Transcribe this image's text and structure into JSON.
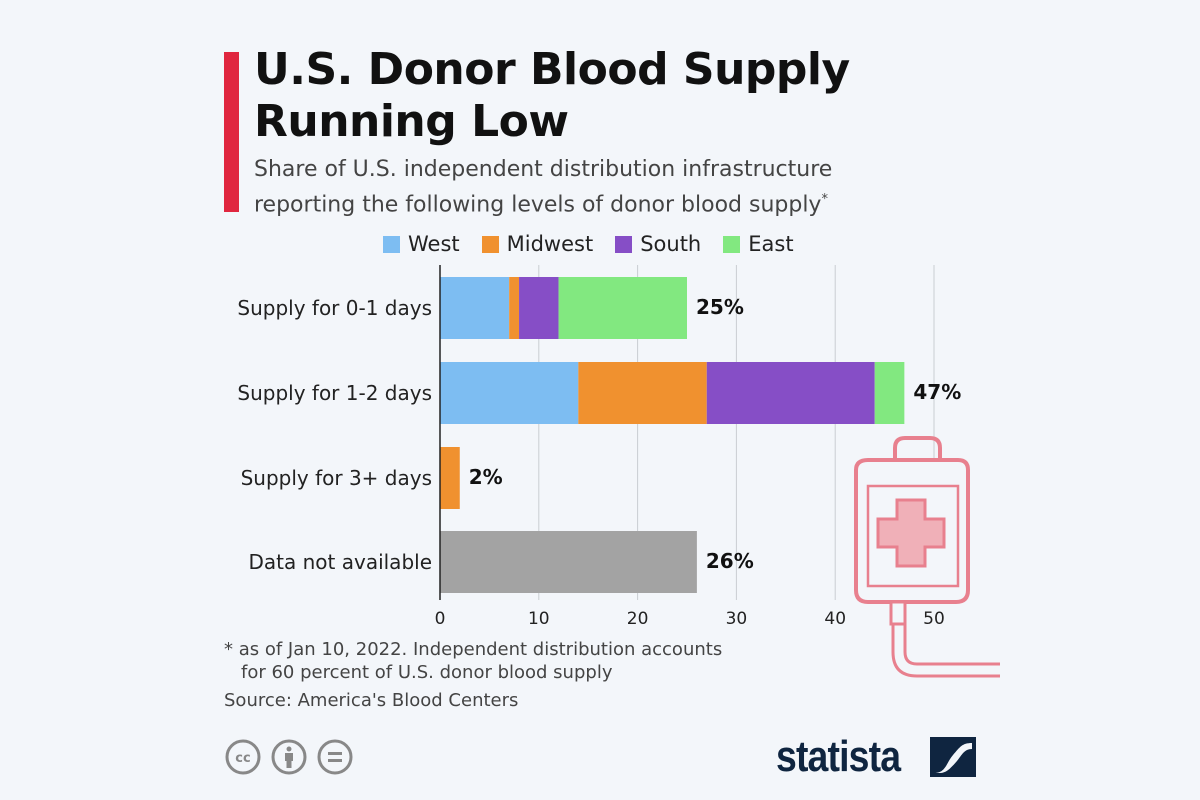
{
  "header": {
    "title_line1": "U.S. Donor Blood Supply",
    "title_line2": "Running Low",
    "subtitle_line1": "Share of U.S. independent distribution infrastructure",
    "subtitle_line2": "reporting the following levels of donor blood supply",
    "subtitle_mark": "*"
  },
  "colors": {
    "accent": "#e0263f",
    "West": "#7dbdf2",
    "Midwest": "#f0912f",
    "South": "#864ec6",
    "East": "#82e880",
    "na": "#a3a3a3",
    "icon": "#e8808e",
    "logo": "#0f2540"
  },
  "chart_data": {
    "type": "bar",
    "orientation": "horizontal",
    "stacked": true,
    "categories": [
      "Supply for 0-1 days",
      "Supply for 1-2 days",
      "Supply for 3+ days",
      "Data not available"
    ],
    "series": [
      {
        "name": "West",
        "values": [
          7,
          14,
          0,
          0
        ]
      },
      {
        "name": "Midwest",
        "values": [
          1,
          13,
          2,
          0
        ]
      },
      {
        "name": "South",
        "values": [
          4,
          17,
          0,
          0
        ]
      },
      {
        "name": "East",
        "values": [
          13,
          3,
          0,
          0
        ]
      },
      {
        "values": [
          0,
          0,
          0,
          26
        ]
      }
    ],
    "totals_labels": [
      "25%",
      "47%",
      "2%",
      "26%"
    ],
    "totals": [
      25,
      47,
      2,
      26
    ],
    "xlim": [
      0,
      55
    ],
    "xticks": [
      0,
      10,
      20,
      30,
      40,
      50
    ],
    "grid": true,
    "legend_placement": "top"
  },
  "footer": {
    "note_line1": "* as of Jan 10, 2022. Independent distribution accounts",
    "note_line2": "for 60 percent of U.S. donor blood supply",
    "source": "Source: America's Blood Centers",
    "brand": "statista"
  },
  "icons": [
    "creative-commons-icon",
    "attribution-icon",
    "no-derivatives-icon",
    "blood-bag-icon",
    "statista-logo-icon"
  ]
}
